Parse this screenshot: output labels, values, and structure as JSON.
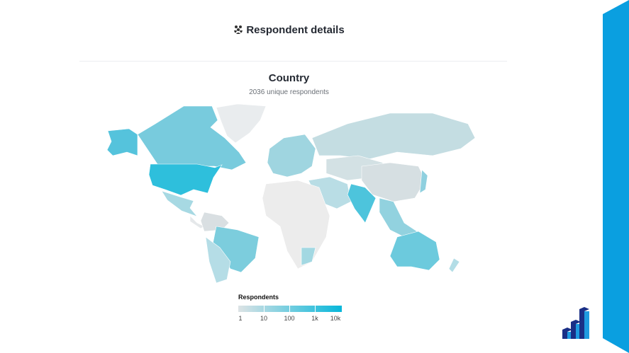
{
  "header": {
    "title": "Respondent details",
    "icon": "people-group-icon"
  },
  "card": {
    "title": "Country",
    "subtitle": "2036 unique respondents"
  },
  "legend": {
    "title": "Respondents",
    "ticks": [
      "1",
      "10",
      "100",
      "1k",
      "10k"
    ],
    "color_low": "#dde3e5",
    "color_high": "#07b7da"
  },
  "colors": {
    "accent_band": "#0a9fe0",
    "no_data": "#f0f0f0",
    "logo": "#1a2f86"
  }
}
